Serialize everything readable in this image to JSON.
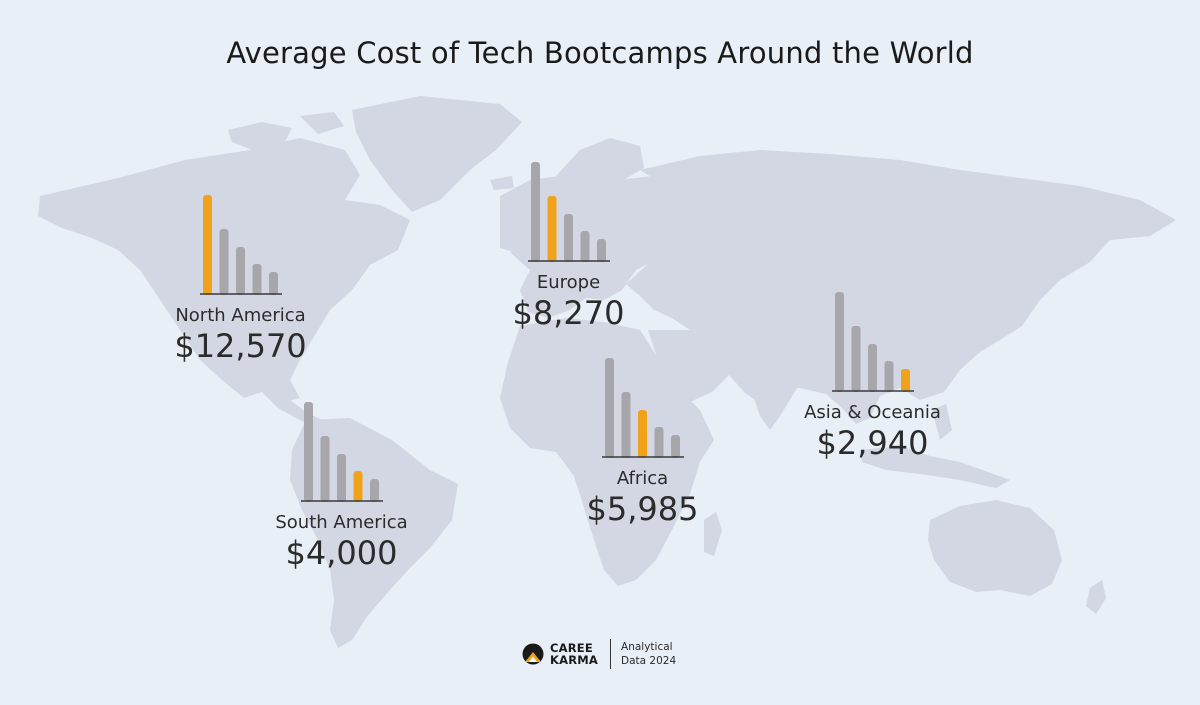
{
  "title": "Average Cost of Tech Bootcamps Around the World",
  "colors": {
    "background": "#e9eff7",
    "land": "#d2d7e3",
    "bar_gray": "#a7a7ab",
    "bar_highlight": "#f0a31a",
    "baseline": "#3a3a3a",
    "text": "#2b2b2b"
  },
  "chart_data": {
    "type": "bar",
    "note": "Each region has a small 5-bar mini chart; the highlighted (orange) bar marks the region's position. Values are relative bar heights as shown.",
    "regions": [
      {
        "name": "North America",
        "value": "$12,570",
        "bars": [
          98,
          64,
          46,
          29,
          21
        ],
        "highlight": 0
      },
      {
        "name": "Europe",
        "value": "$8,270",
        "bars": [
          98,
          64,
          46,
          29,
          21
        ],
        "highlight": 1
      },
      {
        "name": "Africa",
        "value": "$5,985",
        "bars": [
          98,
          64,
          46,
          29,
          21
        ],
        "highlight": 2
      },
      {
        "name": "South America",
        "value": "$4,000",
        "bars": [
          98,
          64,
          46,
          29,
          21
        ],
        "highlight": 3
      },
      {
        "name": "Asia & Oceania",
        "value": "$2,940",
        "bars": [
          98,
          64,
          46,
          29,
          21
        ],
        "highlight": 4
      }
    ]
  },
  "footer": {
    "brand_line1": "CAREE",
    "brand_line2": "KARMA",
    "note_line1": "Analytical",
    "note_line2": "Data 2024"
  }
}
